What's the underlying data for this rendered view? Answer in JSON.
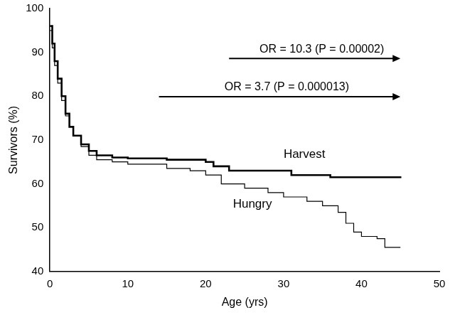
{
  "chart_data": {
    "type": "line",
    "line_style": "step",
    "x_label": "Age (yrs)",
    "y_label": "Survivors (%)",
    "xlim": [
      0,
      50
    ],
    "xticks": [
      0,
      10,
      20,
      30,
      40,
      50
    ],
    "ylim": [
      40,
      100
    ],
    "yticks": [
      40,
      50,
      60,
      70,
      80,
      90,
      100
    ],
    "grid": false,
    "series": [
      {
        "name": "Harvest",
        "color": "#000000",
        "x": [
          0,
          0.3,
          0.6,
          1,
          1.5,
          2,
          2.5,
          3,
          4,
          5,
          6,
          8,
          10,
          15,
          20,
          21,
          23,
          26,
          31,
          36,
          45
        ],
        "values": [
          96,
          92,
          88,
          84,
          80,
          76,
          73,
          71,
          69,
          67.5,
          66.5,
          66,
          65.8,
          65.5,
          65,
          64,
          63,
          63,
          62,
          61.5,
          61.3
        ]
      },
      {
        "name": "Hungry",
        "color": "#000000",
        "x": [
          0,
          0.3,
          0.6,
          1,
          1.5,
          2,
          2.5,
          3,
          4,
          5,
          6,
          8,
          10,
          15,
          18,
          20,
          22,
          25,
          28,
          30,
          33,
          35,
          37,
          38,
          39,
          40,
          42,
          43,
          45
        ],
        "values": [
          95,
          91,
          87,
          83,
          79,
          75.5,
          73,
          71,
          68.5,
          66.5,
          65.5,
          65,
          64.5,
          63.5,
          63,
          62,
          60,
          59,
          58,
          57,
          56,
          55,
          53.5,
          51,
          49,
          48,
          47.5,
          45.5,
          45.5
        ]
      }
    ],
    "annotations": [
      {
        "text": "OR = 10.3 (P = 0.00002)",
        "x": [
          23,
          45
        ]
      },
      {
        "text": "OR = 3.7 (P = 0.000013)",
        "x": [
          14,
          45
        ]
      }
    ]
  }
}
